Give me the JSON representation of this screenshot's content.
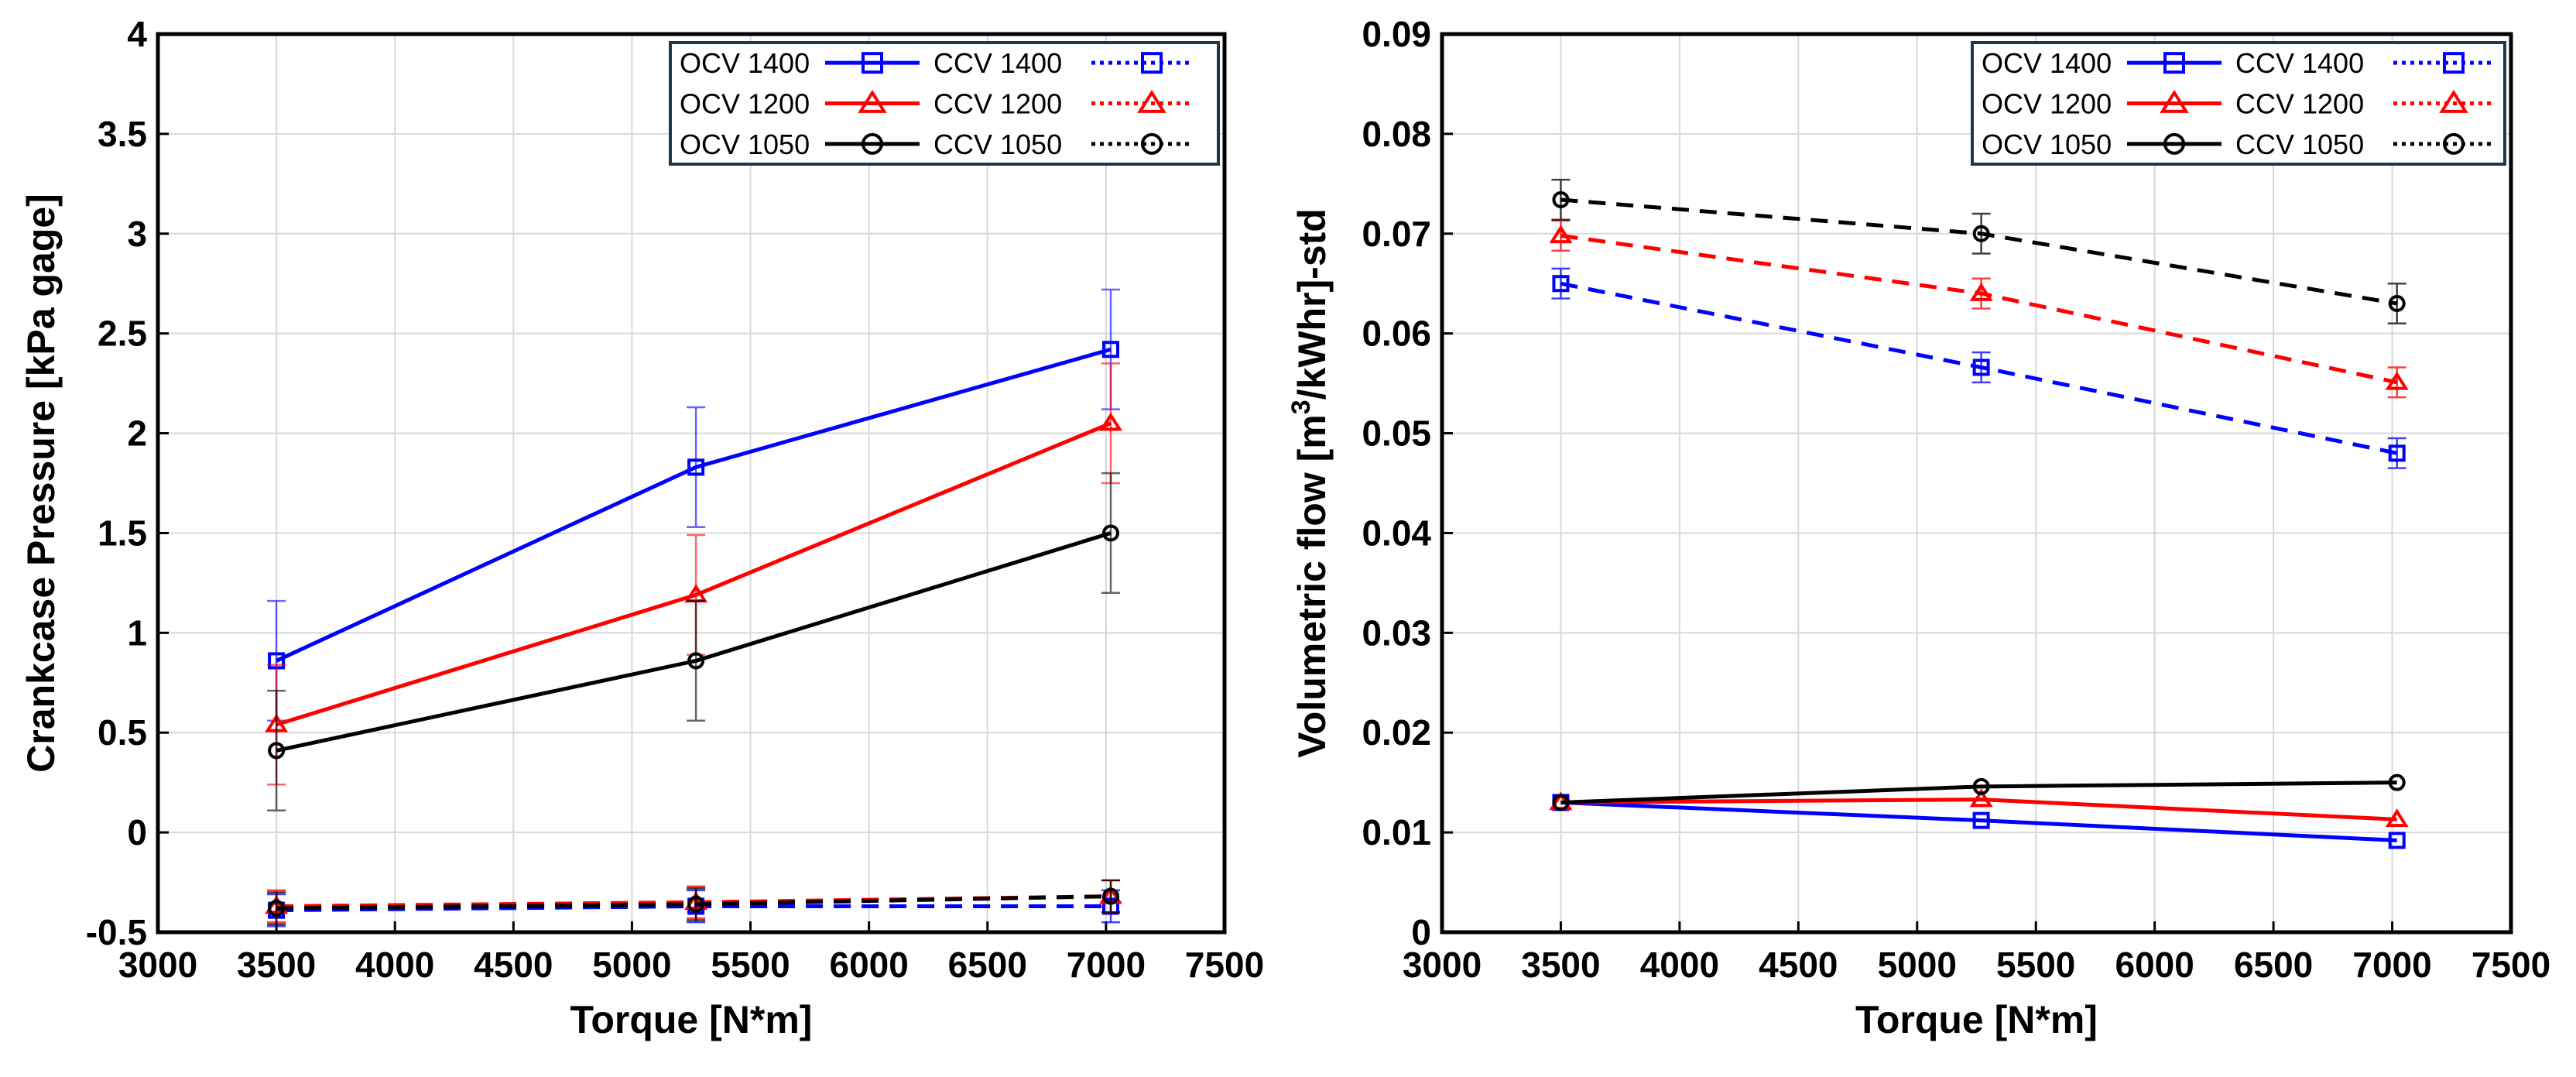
{
  "chart_data": [
    {
      "type": "line",
      "id": "left",
      "xlabel": "Torque [N*m]",
      "ylabel": "Crankcase Pressure [kPa gage]",
      "ylabel_sup": "",
      "ylabel_tail": "",
      "xlim": [
        3000,
        7500
      ],
      "ylim": [
        -0.5,
        4
      ],
      "xticks": [
        3000,
        3500,
        4000,
        4500,
        5000,
        5500,
        6000,
        6500,
        7000,
        7500
      ],
      "yticks": [
        -0.5,
        0,
        0.5,
        1,
        1.5,
        2,
        2.5,
        3,
        3.5,
        4
      ],
      "ytick_labels": [
        "-0.5",
        "0",
        "0.5",
        "1",
        "1.5",
        "2",
        "2.5",
        "3",
        "3.5",
        "4"
      ],
      "grid": true,
      "legend_position": "top-right",
      "legend_rows": [
        {
          "left": "OCV 1400",
          "right": "CCV 1400",
          "color": "#0000ff",
          "marker": "square"
        },
        {
          "left": "OCV 1200",
          "right": "CCV 1200",
          "color": "#ff0000",
          "marker": "triangle"
        },
        {
          "left": "OCV 1050",
          "right": "CCV 1050",
          "color": "#000000",
          "marker": "circle"
        }
      ],
      "series": [
        {
          "name": "OCV 1400",
          "color": "#0000ff",
          "marker": "square",
          "dash": "solid",
          "x": [
            3500,
            5270,
            7020
          ],
          "y": [
            0.86,
            1.83,
            2.42
          ],
          "err": [
            0.3,
            0.3,
            0.3
          ]
        },
        {
          "name": "OCV 1200",
          "color": "#ff0000",
          "marker": "triangle",
          "dash": "solid",
          "x": [
            3500,
            5270,
            7020
          ],
          "y": [
            0.54,
            1.19,
            2.05
          ],
          "err": [
            0.3,
            0.3,
            0.3
          ]
        },
        {
          "name": "OCV 1050",
          "color": "#000000",
          "marker": "circle",
          "dash": "solid",
          "x": [
            3500,
            5270,
            7020
          ],
          "y": [
            0.41,
            0.86,
            1.5
          ],
          "err": [
            0.3,
            0.3,
            0.3
          ]
        },
        {
          "name": "CCV 1400",
          "color": "#0000ff",
          "marker": "square",
          "dash": "dashed",
          "x": [
            3500,
            5270,
            7020
          ],
          "y": [
            -0.39,
            -0.37,
            -0.37
          ],
          "err": [
            0.08,
            0.08,
            0.08
          ]
        },
        {
          "name": "CCV 1200",
          "color": "#ff0000",
          "marker": "triangle",
          "dash": "dashed",
          "x": [
            3500,
            5270,
            7020
          ],
          "y": [
            -0.37,
            -0.35,
            -0.32
          ],
          "err": [
            0.08,
            0.08,
            0.08
          ]
        },
        {
          "name": "CCV 1050",
          "color": "#000000",
          "marker": "circle",
          "dash": "dashed",
          "x": [
            3500,
            5270,
            7020
          ],
          "y": [
            -0.38,
            -0.36,
            -0.32
          ],
          "err": [
            0.08,
            0.08,
            0.08
          ]
        }
      ]
    },
    {
      "type": "line",
      "id": "right",
      "xlabel": "Torque [N*m]",
      "ylabel": "Volumetric flow [m",
      "ylabel_sup": "3",
      "ylabel_tail": "/kWhr]-std",
      "xlim": [
        3000,
        7500
      ],
      "ylim": [
        0,
        0.09
      ],
      "xticks": [
        3000,
        3500,
        4000,
        4500,
        5000,
        5500,
        6000,
        6500,
        7000,
        7500
      ],
      "yticks": [
        0,
        0.01,
        0.02,
        0.03,
        0.04,
        0.05,
        0.06,
        0.07,
        0.08,
        0.09
      ],
      "ytick_labels": [
        "0",
        "0.01",
        "0.02",
        "0.03",
        "0.04",
        "0.05",
        "0.06",
        "0.07",
        "0.08",
        "0.09"
      ],
      "grid": true,
      "legend_position": "top-right",
      "legend_rows": [
        {
          "left": "OCV 1400",
          "right": "CCV 1400",
          "color": "#0000ff",
          "marker": "square"
        },
        {
          "left": "OCV 1200",
          "right": "CCV 1200",
          "color": "#ff0000",
          "marker": "triangle"
        },
        {
          "left": "OCV 1050",
          "right": "CCV 1050",
          "color": "#000000",
          "marker": "circle"
        }
      ],
      "series": [
        {
          "name": "OCV 1400",
          "color": "#0000ff",
          "marker": "square",
          "dash": "solid",
          "x": [
            3500,
            5270,
            7020
          ],
          "y": [
            0.013,
            0.0112,
            0.0092
          ],
          "err": [
            0,
            0,
            0
          ]
        },
        {
          "name": "OCV 1200",
          "color": "#ff0000",
          "marker": "triangle",
          "dash": "solid",
          "x": [
            3500,
            5270,
            7020
          ],
          "y": [
            0.013,
            0.0133,
            0.0113
          ],
          "err": [
            0,
            0,
            0
          ]
        },
        {
          "name": "OCV 1050",
          "color": "#000000",
          "marker": "circle",
          "dash": "solid",
          "x": [
            3500,
            5270,
            7020
          ],
          "y": [
            0.013,
            0.0146,
            0.015
          ],
          "err": [
            0,
            0,
            0
          ]
        },
        {
          "name": "CCV 1400",
          "color": "#0000ff",
          "marker": "square",
          "dash": "dashed",
          "x": [
            3500,
            5270,
            7020
          ],
          "y": [
            0.065,
            0.0566,
            0.048
          ],
          "err": [
            0.0015,
            0.0015,
            0.0015
          ]
        },
        {
          "name": "CCV 1200",
          "color": "#ff0000",
          "marker": "triangle",
          "dash": "dashed",
          "x": [
            3500,
            5270,
            7020
          ],
          "y": [
            0.0698,
            0.064,
            0.0551
          ],
          "err": [
            0.0015,
            0.0015,
            0.0015
          ]
        },
        {
          "name": "CCV 1050",
          "color": "#000000",
          "marker": "circle",
          "dash": "dashed",
          "x": [
            3500,
            5270,
            7020
          ],
          "y": [
            0.0734,
            0.07,
            0.063
          ],
          "err": [
            0.002,
            0.002,
            0.002
          ]
        }
      ]
    }
  ]
}
